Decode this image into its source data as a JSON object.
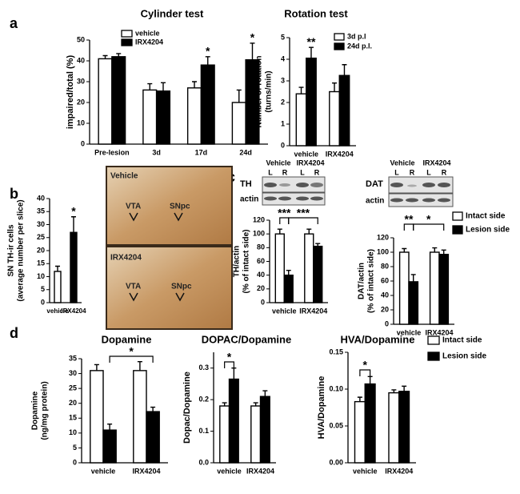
{
  "panels": [
    "a",
    "b",
    "c",
    "d"
  ],
  "micrographs": [
    {
      "title": "Vehicle",
      "labels": [
        "VTA",
        "SNpc"
      ]
    },
    {
      "title": "IRX4204",
      "labels": [
        "VTA",
        "SNpc"
      ]
    }
  ],
  "blots": [
    {
      "rows": [
        "TH",
        "actin"
      ],
      "groups": [
        "Vehicle",
        "IRX4204"
      ],
      "lanes": [
        "L",
        "R",
        "L",
        "R"
      ]
    },
    {
      "rows": [
        "DAT",
        "actin"
      ],
      "groups": [
        "Vehicle",
        "IRX4204"
      ],
      "lanes": [
        "L",
        "R",
        "L",
        "R"
      ]
    }
  ],
  "chart_data": [
    {
      "type": "bar",
      "title": "Cylinder test",
      "ylabel": [
        "impaired/total (%)"
      ],
      "categories": [
        "Pre-lesion",
        "3d",
        "17d",
        "24d"
      ],
      "series": [
        {
          "name": "vehicle",
          "color": "#ffffff",
          "values": [
            41,
            26,
            27,
            20
          ],
          "errors": [
            1.5,
            3,
            3,
            6
          ]
        },
        {
          "name": "IRX4204",
          "color": "#000000",
          "values": [
            42,
            25.5,
            38,
            40.5
          ],
          "errors": [
            1.5,
            4,
            4,
            8
          ]
        }
      ],
      "ylim": [
        0,
        50
      ],
      "yticks": [
        0,
        10,
        20,
        30,
        40,
        50
      ],
      "annotations": [
        "*",
        "*"
      ]
    },
    {
      "type": "bar",
      "title": "Rotation test",
      "ylabel": [
        "Number of rotation",
        "(turns/min)"
      ],
      "categories": [
        "vehicle",
        "IRX4204"
      ],
      "series": [
        {
          "name": "3d p.l",
          "color": "#ffffff",
          "values": [
            2.4,
            2.5
          ],
          "errors": [
            0.3,
            0.4
          ]
        },
        {
          "name": "24d p.l.",
          "color": "#000000",
          "values": [
            4.05,
            3.25
          ],
          "errors": [
            0.5,
            0.5
          ]
        }
      ],
      "ylim": [
        0,
        5
      ],
      "yticks": [
        0,
        1,
        2,
        3,
        4,
        5
      ],
      "annotations": [
        "**"
      ]
    },
    {
      "type": "bar",
      "ylabel": [
        "SN TH-ir cells",
        "(average number per slice)"
      ],
      "categories": [
        "vehicle",
        "IRX4204"
      ],
      "values": [
        12,
        27
      ],
      "colors": [
        "#ffffff",
        "#000000"
      ],
      "errors": [
        2,
        6
      ],
      "ylim": [
        0,
        40
      ],
      "yticks": [
        0,
        5,
        10,
        15,
        20,
        25,
        30,
        35,
        40
      ],
      "annotations": [
        "*"
      ]
    },
    {
      "type": "bar",
      "ylabel": [
        "TH/actin",
        "(% of intact side)"
      ],
      "categories": [
        "vehicle",
        "IRX4204"
      ],
      "series": [
        {
          "color": "#ffffff",
          "values": [
            100,
            100
          ],
          "errors": [
            7,
            7
          ]
        },
        {
          "color": "#000000",
          "values": [
            40,
            82
          ],
          "errors": [
            7,
            4
          ]
        }
      ],
      "ylim": [
        0,
        120
      ],
      "yticks": [
        0,
        20,
        40,
        60,
        80,
        100,
        120
      ],
      "annotations": [
        "***",
        "***"
      ]
    },
    {
      "type": "bar",
      "ylabel": [
        "DAT/actin",
        "(% of intact side)"
      ],
      "categories": [
        "vehicle",
        "IRX4204"
      ],
      "series": [
        {
          "name": "Intact side",
          "color": "#ffffff",
          "values": [
            100,
            100
          ],
          "errors": [
            5,
            6
          ]
        },
        {
          "name": "Lesion side",
          "color": "#000000",
          "values": [
            59,
            97
          ],
          "errors": [
            10,
            6
          ]
        }
      ],
      "ylim": [
        0,
        120
      ],
      "yticks": [
        0,
        20,
        40,
        60,
        80,
        100,
        120
      ],
      "annotations": [
        "**",
        "*"
      ]
    },
    {
      "type": "bar",
      "title": "Dopamine",
      "ylabel": [
        "Dopamine",
        "(ng/mg protein)"
      ],
      "categories": [
        "vehicle",
        "IRX4204"
      ],
      "series": [
        {
          "color": "#ffffff",
          "values": [
            31,
            31
          ],
          "errors": [
            2,
            3
          ]
        },
        {
          "color": "#000000",
          "values": [
            11,
            17.2
          ],
          "errors": [
            2,
            1.5
          ]
        }
      ],
      "ylim": [
        0,
        35
      ],
      "yticks": [
        0,
        5,
        10,
        15,
        20,
        25,
        30,
        35
      ],
      "annotations": [
        "*"
      ]
    },
    {
      "type": "bar",
      "title": "DOPAC/Dopamine",
      "ylabel": [
        "Dopac/Dopamine"
      ],
      "categories": [
        "vehicle",
        "IRX4204"
      ],
      "series": [
        {
          "color": "#ffffff",
          "values": [
            0.18,
            0.18
          ],
          "errors": [
            0.01,
            0.01
          ]
        },
        {
          "color": "#000000",
          "values": [
            0.265,
            0.21
          ],
          "errors": [
            0.035,
            0.018
          ]
        }
      ],
      "ylim": [
        0,
        0.35
      ],
      "yticks": [
        {
          "value": 0,
          "label": "0.0"
        },
        0.1,
        0.2,
        0.3
      ],
      "annotations": [
        "*"
      ]
    },
    {
      "type": "bar",
      "title": "HVA/Dopamine",
      "ylabel": [
        "HVA/Dopamine"
      ],
      "categories": [
        "vehicle",
        "IRX4204"
      ],
      "series": [
        {
          "name": "Intact side",
          "color": "#ffffff",
          "values": [
            0.083,
            0.095
          ],
          "errors": [
            0.006,
            0.004
          ]
        },
        {
          "name": "Lesion side",
          "color": "#000000",
          "values": [
            0.107,
            0.097
          ],
          "errors": [
            0.01,
            0.007
          ]
        }
      ],
      "ylim": [
        0,
        0.15
      ],
      "yticks": [
        {
          "value": 0,
          "label": "0.00"
        },
        0.05,
        {
          "value": 0.1,
          "label": "0.10"
        },
        0.15
      ],
      "annotations": [
        "*"
      ]
    }
  ]
}
